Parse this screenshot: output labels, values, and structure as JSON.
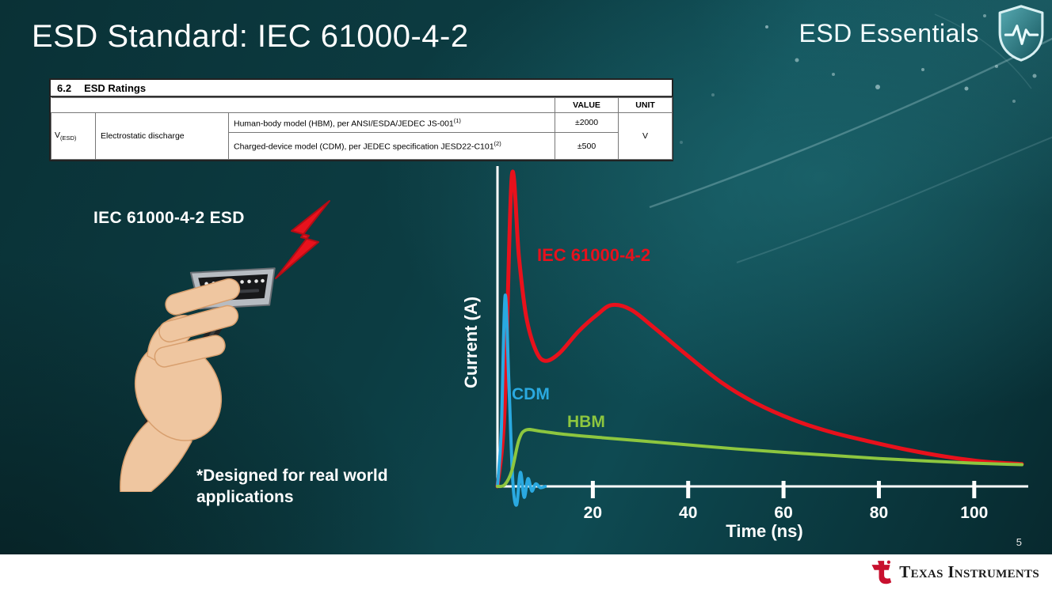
{
  "slide": {
    "title": "ESD Standard: IEC 61000-4-2",
    "series_label": "ESD Essentials",
    "page_number": "5",
    "esd_source_label": "IEC 61000-4-2 ESD",
    "footnote": "*Designed for real world applications"
  },
  "ratings_table": {
    "section_number": "6.2",
    "section_title": "ESD Ratings",
    "col_value": "VALUE",
    "col_unit": "UNIT",
    "param_symbol": "V",
    "param_symbol_sub": "(ESD)",
    "param_name": "Electrostatic discharge",
    "rows": [
      {
        "description": "Human-body model (HBM), per ANSI/ESDA/JEDEC JS-001",
        "sup": "(1)",
        "value": "±2000"
      },
      {
        "description": "Charged-device model (CDM), per JEDEC specification JESD22-C101",
        "sup": "(2)",
        "value": "±500"
      }
    ],
    "unit": "V"
  },
  "chart_data": {
    "type": "line",
    "title": "",
    "xlabel": "Time (ns)",
    "ylabel": "Current (A)",
    "xlim": [
      0,
      110
    ],
    "ylim": [
      -0.08,
      1.05
    ],
    "x_ticks": [
      20,
      40,
      60,
      80,
      100
    ],
    "grid": false,
    "legend_position": "inline-labels",
    "series": [
      {
        "name": "IEC 61000-4-2",
        "color": "#e8111c",
        "points": [
          [
            0,
            0
          ],
          [
            1.5,
            0.25
          ],
          [
            3,
            1.0
          ],
          [
            4.5,
            0.74
          ],
          [
            6,
            0.55
          ],
          [
            8,
            0.44
          ],
          [
            10,
            0.405
          ],
          [
            13,
            0.43
          ],
          [
            17,
            0.5
          ],
          [
            21,
            0.555
          ],
          [
            24,
            0.585
          ],
          [
            28,
            0.57
          ],
          [
            33,
            0.51
          ],
          [
            40,
            0.42
          ],
          [
            47,
            0.335
          ],
          [
            54,
            0.27
          ],
          [
            62,
            0.215
          ],
          [
            70,
            0.175
          ],
          [
            78,
            0.145
          ],
          [
            86,
            0.118
          ],
          [
            94,
            0.096
          ],
          [
            102,
            0.08
          ],
          [
            110,
            0.072
          ]
        ]
      },
      {
        "name": "CDM",
        "color": "#2aa9e0",
        "points": [
          [
            0,
            0
          ],
          [
            0.8,
            0.18
          ],
          [
            1.6,
            0.615
          ],
          [
            2.4,
            0.33
          ],
          [
            3.2,
            0.02
          ],
          [
            4,
            -0.06
          ],
          [
            4.8,
            0.045
          ],
          [
            5.6,
            -0.035
          ],
          [
            6.4,
            0.025
          ],
          [
            7.2,
            -0.015
          ],
          [
            8,
            0.008
          ],
          [
            9,
            -0.004
          ],
          [
            10,
            0
          ]
        ]
      },
      {
        "name": "HBM",
        "color": "#8dc63f",
        "points": [
          [
            0,
            0
          ],
          [
            1.5,
            0.005
          ],
          [
            3,
            0.05
          ],
          [
            4.5,
            0.15
          ],
          [
            6,
            0.182
          ],
          [
            9,
            0.178
          ],
          [
            14,
            0.168
          ],
          [
            22,
            0.157
          ],
          [
            30,
            0.147
          ],
          [
            40,
            0.134
          ],
          [
            50,
            0.121
          ],
          [
            60,
            0.11
          ],
          [
            70,
            0.1
          ],
          [
            80,
            0.09
          ],
          [
            90,
            0.082
          ],
          [
            100,
            0.075
          ],
          [
            110,
            0.07
          ]
        ]
      }
    ]
  },
  "footer": {
    "brand": "Texas Instruments"
  }
}
